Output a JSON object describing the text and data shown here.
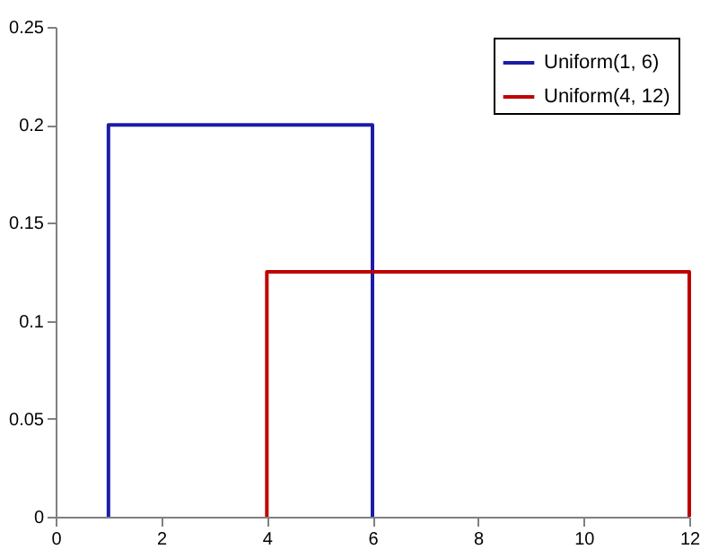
{
  "chart_data": {
    "type": "line",
    "xlim": [
      0,
      12
    ],
    "xticks": [
      0,
      2,
      4,
      6,
      8,
      10,
      12
    ],
    "ylim": [
      0,
      0.25
    ],
    "yticks": [
      0,
      0.05,
      0.1,
      0.15,
      0.2,
      0.25
    ],
    "grid": false,
    "legend": "top right",
    "marker": "none",
    "line_style": "solid",
    "series": [
      {
        "name": "Uniform(1, 6)",
        "color": "#1c1ca8",
        "x": [
          1,
          1,
          6,
          6
        ],
        "values": [
          0,
          0.2,
          0.2,
          0
        ]
      },
      {
        "name": "Uniform(4, 12)",
        "color": "#c00000",
        "x": [
          4,
          4,
          12,
          12
        ],
        "values": [
          0,
          0.125,
          0.125,
          0
        ]
      }
    ]
  }
}
